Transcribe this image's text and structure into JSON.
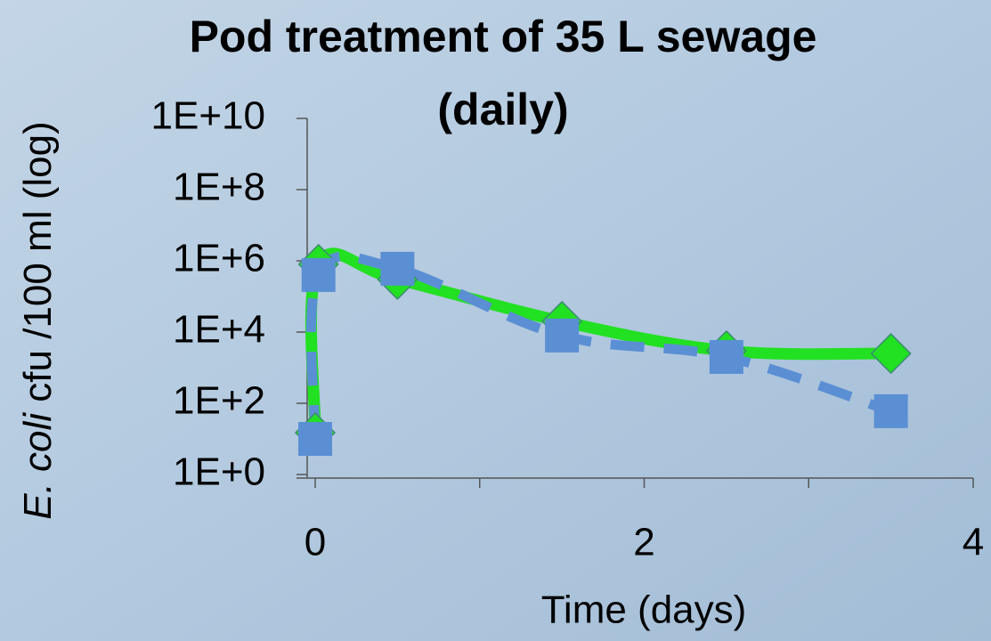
{
  "chart_data": {
    "type": "line",
    "title": "Pod treatment of 35 L sewage (daily)",
    "xlabel": "Time (days)",
    "ylabel_italic": "E. coli",
    "ylabel": "cfu /100 ml (log)",
    "x": [
      0,
      0.02,
      0.5,
      1.5,
      2.5,
      3.5
    ],
    "series": [
      {
        "color": "#22e022",
        "marker": "diamond",
        "dashed": false,
        "values": [
          15,
          800000,
          300000,
          20000,
          3000,
          2500
        ]
      },
      {
        "color": "#5b8fd4",
        "marker": "square",
        "dashed": true,
        "values": [
          10,
          400000,
          600000,
          8000,
          2000,
          60
        ]
      }
    ],
    "xlim": [
      0,
      4
    ],
    "xticks": [
      0,
      2,
      4
    ],
    "xminor_ticks": [
      1,
      3
    ],
    "ylim": [
      1,
      10000000000
    ],
    "log_y": true,
    "yticks": [
      {
        "value": 1,
        "label": "1E+0"
      },
      {
        "value": 100,
        "label": "1E+2"
      },
      {
        "value": 10000,
        "label": "1E+4"
      },
      {
        "value": 1000000,
        "label": "1E+6"
      },
      {
        "value": 100000000,
        "label": "1E+8"
      },
      {
        "value": 10000000000,
        "label": "1E+10"
      }
    ]
  }
}
